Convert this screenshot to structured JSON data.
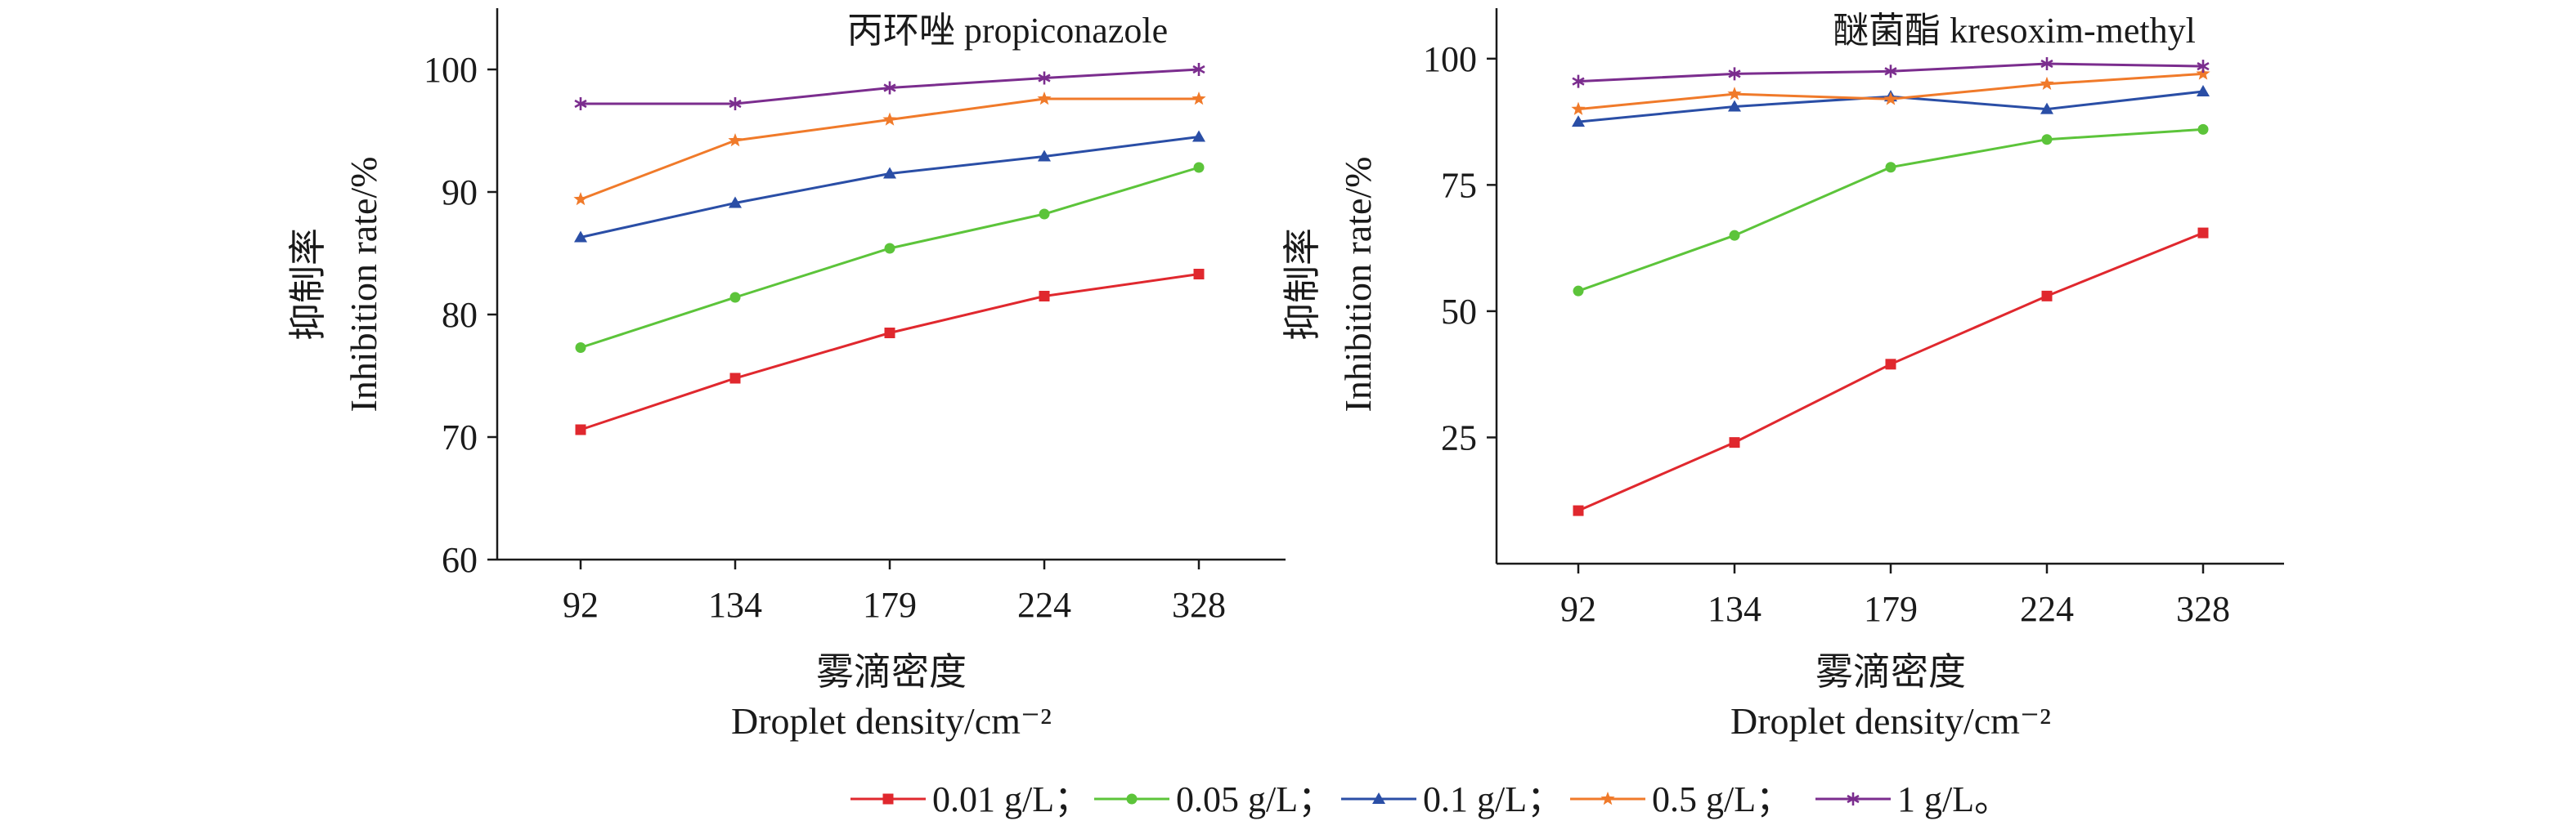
{
  "figure": {
    "legend": {
      "entries": [
        {
          "label": "0.01 g/L；",
          "color": "#e0282e",
          "marker": "square"
        },
        {
          "label": "0.05 g/L；",
          "color": "#5cc43a",
          "marker": "circle"
        },
        {
          "label": "0.1 g/L；",
          "color": "#2a4ea6",
          "marker": "triangle"
        },
        {
          "label": "0.5 g/L；",
          "color": "#f07a2a",
          "marker": "star"
        },
        {
          "label": "1 g/L。",
          "color": "#7b2d8e",
          "marker": "asterisk"
        }
      ]
    }
  },
  "chart_data": [
    {
      "type": "line",
      "title": "丙环唑 propiconazole",
      "xlabel_cn": "雾滴密度",
      "xlabel": "Droplet density/cm⁻²",
      "ylabel_cn": "抑制率",
      "ylabel": "Inhibition rate/%",
      "categories": [
        "92",
        "134",
        "179",
        "224",
        "328"
      ],
      "ylim": [
        60,
        105
      ],
      "yticks": [
        60,
        70,
        80,
        90,
        100
      ],
      "grid": false,
      "series": [
        {
          "name": "0.01 g/L",
          "values": [
            70.6,
            74.8,
            78.5,
            81.5,
            83.3
          ]
        },
        {
          "name": "0.05 g/L",
          "values": [
            77.3,
            81.4,
            85.4,
            88.2,
            92.0
          ]
        },
        {
          "name": "0.1 g/L",
          "values": [
            86.3,
            89.1,
            91.5,
            92.9,
            94.5
          ]
        },
        {
          "name": "0.5 g/L",
          "values": [
            89.4,
            94.2,
            95.9,
            97.6,
            97.6
          ]
        },
        {
          "name": "1 g/L",
          "values": [
            97.2,
            97.2,
            98.5,
            99.3,
            100.0
          ]
        }
      ]
    },
    {
      "type": "line",
      "title": "醚菌酯 kresoxim-methyl",
      "xlabel_cn": "雾滴密度",
      "xlabel": "Droplet density/cm⁻²",
      "ylabel_cn": "抑制率",
      "ylabel": "Inhibition rate/%",
      "categories": [
        "92",
        "134",
        "179",
        "224",
        "328"
      ],
      "ylim": [
        0,
        110
      ],
      "yticks": [
        25,
        50,
        75,
        100
      ],
      "grid": false,
      "series": [
        {
          "name": "0.01 g/L",
          "values": [
            10.5,
            24.0,
            39.5,
            53.0,
            65.5
          ]
        },
        {
          "name": "0.05 g/L",
          "values": [
            54.0,
            65.0,
            78.5,
            84.0,
            86.0
          ]
        },
        {
          "name": "0.1 g/L",
          "values": [
            87.5,
            90.5,
            92.5,
            90.0,
            93.5
          ]
        },
        {
          "name": "0.5 g/L",
          "values": [
            90.0,
            93.0,
            92.0,
            95.0,
            97.0
          ]
        },
        {
          "name": "1 g/L",
          "values": [
            95.5,
            97.0,
            97.5,
            99.0,
            98.5
          ]
        }
      ]
    }
  ]
}
